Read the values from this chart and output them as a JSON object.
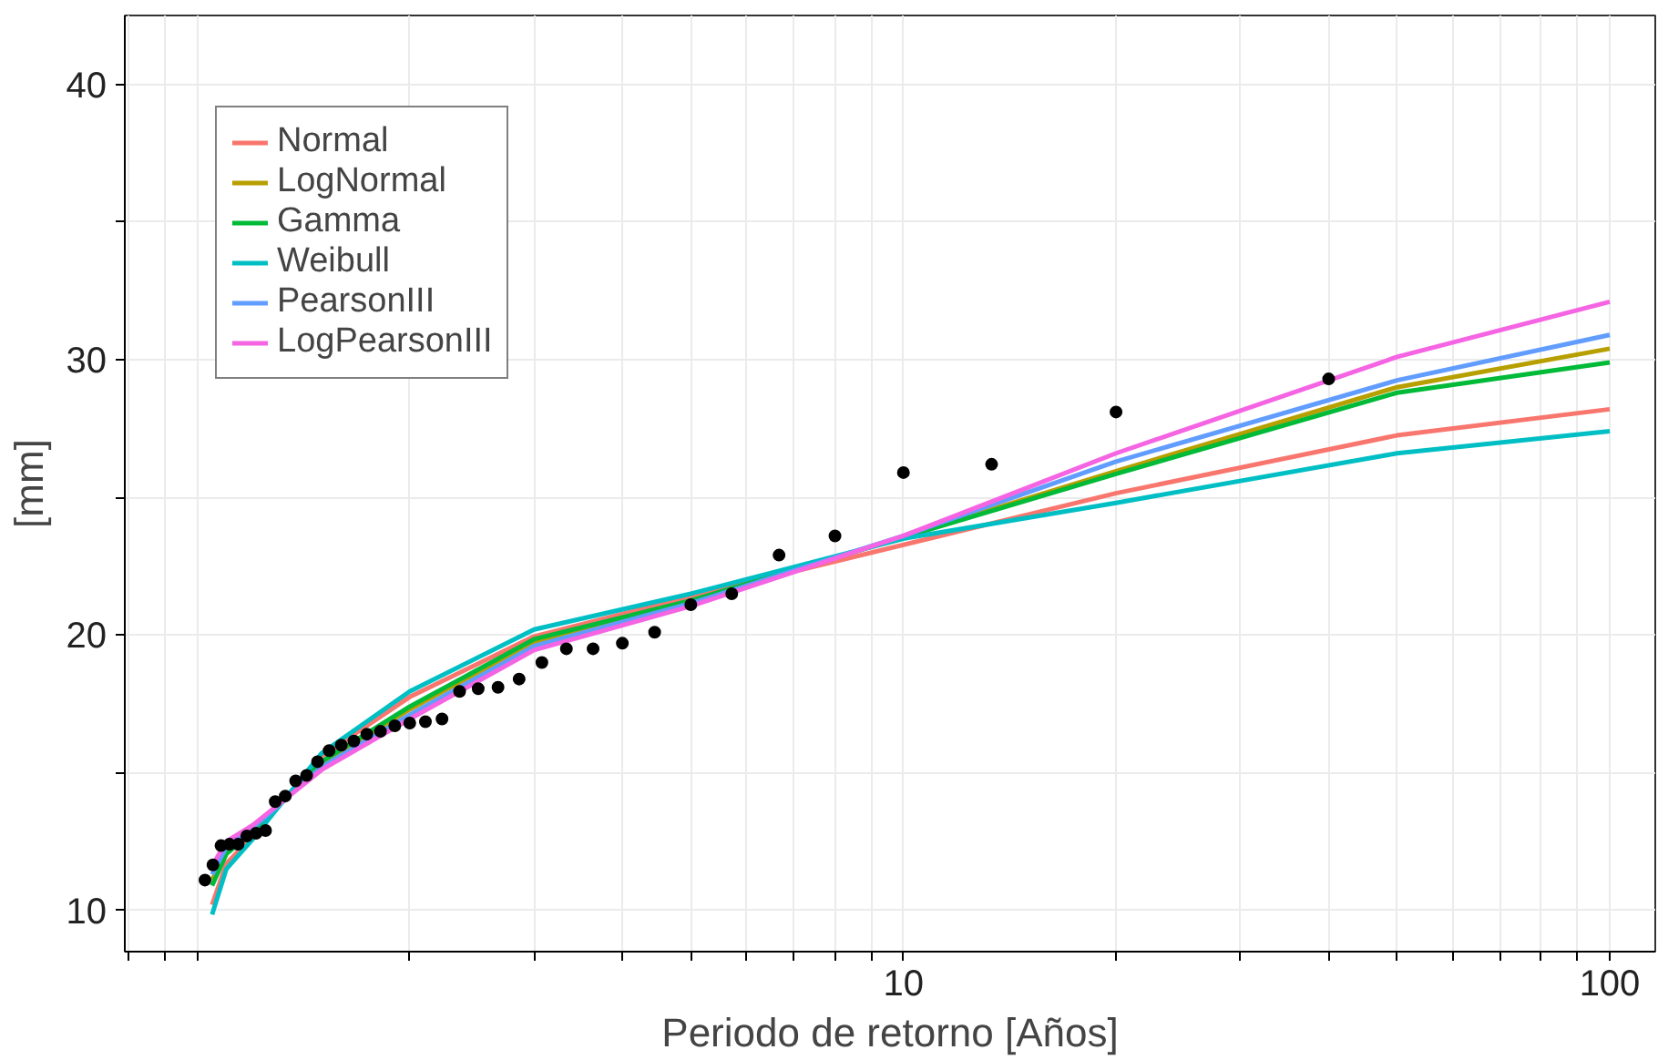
{
  "chart_data": {
    "type": "line",
    "xlabel": "Periodo de retorno [Años]",
    "ylabel": "[mm]",
    "log": "x",
    "xlim": [
      0.79,
      116
    ],
    "ylim": [
      8.5,
      42.5
    ],
    "xticks": [
      {
        "value": 0.8,
        "label": null
      },
      {
        "value": 0.9,
        "label": null
      },
      {
        "value": 1,
        "label": null
      },
      {
        "value": 2,
        "label": null
      },
      {
        "value": 3,
        "label": null
      },
      {
        "value": 4,
        "label": null
      },
      {
        "value": 5,
        "label": null
      },
      {
        "value": 6,
        "label": null
      },
      {
        "value": 7,
        "label": null
      },
      {
        "value": 8,
        "label": null
      },
      {
        "value": 9,
        "label": null
      },
      10,
      {
        "value": 20,
        "label": null
      },
      {
        "value": 30,
        "label": null
      },
      {
        "value": 40,
        "label": null
      },
      {
        "value": 50,
        "label": null
      },
      {
        "value": 60,
        "label": null
      },
      {
        "value": 70,
        "label": null
      },
      {
        "value": 80,
        "label": null
      },
      {
        "value": 90,
        "label": null
      },
      100
    ],
    "yticks": [
      10,
      {
        "value": 15,
        "label": null
      },
      20,
      {
        "value": 25,
        "label": null
      },
      30,
      {
        "value": 35,
        "label": null
      },
      40
    ],
    "grid": true,
    "legend": "top left",
    "marker": "none",
    "line_style": "solid",
    "series": [
      {
        "name": "Normal",
        "color": "#f8766d",
        "x": [
          1.05,
          1.1,
          1.2,
          1.5,
          2,
          3,
          5,
          20,
          50,
          100
        ],
        "values": [
          10.2,
          11.7,
          12.7,
          15.6,
          17.75,
          19.95,
          21.4,
          25.15,
          27.25,
          28.2
        ]
      },
      {
        "name": "LogNormal",
        "color": "#b79f00",
        "x": [
          1.05,
          1.1,
          1.2,
          1.5,
          2,
          3,
          5,
          20,
          50,
          100
        ],
        "values": [
          11.1,
          12.15,
          12.9,
          15.3,
          17.3,
          19.75,
          21.2,
          25.95,
          29.0,
          30.4
        ]
      },
      {
        "name": "Gamma",
        "color": "#00ba38",
        "x": [
          1.05,
          1.1,
          1.2,
          1.5,
          2,
          3,
          5,
          10,
          20,
          50,
          100
        ],
        "values": [
          10.9,
          12.05,
          12.85,
          15.4,
          17.4,
          19.85,
          21.25,
          23.55,
          25.85,
          28.8,
          29.9
        ]
      },
      {
        "name": "Weibull",
        "color": "#00bfc4",
        "x": [
          1.05,
          1.1,
          1.2,
          1.5,
          2,
          3,
          5,
          10,
          20,
          50,
          100
        ],
        "values": [
          9.85,
          11.5,
          12.6,
          15.7,
          17.95,
          20.2,
          21.5,
          23.5,
          24.8,
          26.6,
          27.4
        ]
      },
      {
        "name": "PearsonIII",
        "color": "#619cff",
        "x": [
          1.05,
          1.1,
          1.2,
          1.5,
          2,
          3,
          5,
          10,
          20,
          50,
          100
        ],
        "values": [
          11.3,
          12.3,
          13.0,
          15.2,
          17.1,
          19.6,
          21.15,
          23.6,
          26.3,
          29.25,
          30.9
        ]
      },
      {
        "name": "LogPearsonIII",
        "color": "#f564e3",
        "x": [
          1.05,
          1.1,
          1.2,
          1.5,
          2,
          3,
          5,
          10,
          20,
          50,
          100
        ],
        "values": [
          11.6,
          12.5,
          13.1,
          15.1,
          16.95,
          19.45,
          21.05,
          23.6,
          26.6,
          30.1,
          32.1
        ]
      },
      {
        "type": "scatter",
        "marker": "circle",
        "color": "#000000",
        "x": [
          1.026,
          1.053,
          1.081,
          1.111,
          1.143,
          1.176,
          1.212,
          1.25,
          1.29,
          1.333,
          1.379,
          1.429,
          1.481,
          1.538,
          1.6,
          1.667,
          1.739,
          1.818,
          1.905,
          2,
          2.105,
          2.222,
          2.353,
          2.5,
          2.667,
          2.857,
          3.077,
          3.333,
          3.636,
          4,
          4.444,
          5,
          5.714,
          6.667,
          8,
          10,
          13.33,
          20,
          40
        ],
        "values": [
          11.1,
          11.65,
          12.35,
          12.4,
          12.4,
          12.7,
          12.8,
          12.9,
          13.95,
          14.15,
          14.7,
          14.9,
          15.4,
          15.8,
          16.0,
          16.15,
          16.4,
          16.5,
          16.7,
          16.8,
          16.85,
          16.95,
          17.95,
          18.05,
          18.1,
          18.4,
          19.0,
          19.5,
          19.5,
          19.7,
          20.1,
          21.1,
          21.5,
          22.9,
          23.6,
          25.9,
          26.2,
          28.1,
          29.3
        ]
      }
    ]
  }
}
